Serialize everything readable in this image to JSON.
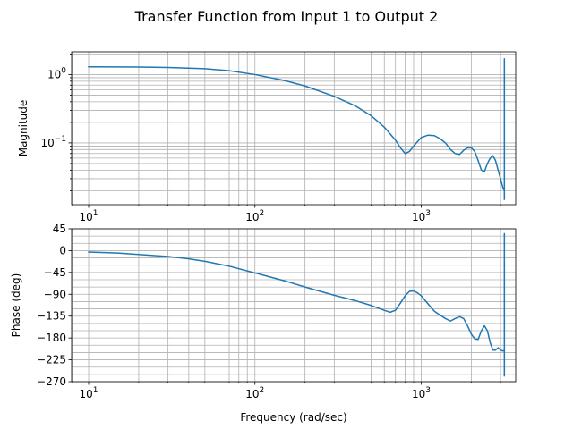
{
  "title": "Transfer Function from Input 1 to Output 2",
  "chart_data": [
    {
      "type": "line",
      "panel": "magnitude",
      "xscale": "log",
      "yscale": "log",
      "xlim": [
        7.9,
        3700
      ],
      "ylim": [
        0.0125,
        2.15
      ],
      "grid": true,
      "xlabel": "",
      "ylabel": "Magnitude",
      "xticks": [
        10,
        100,
        1000
      ],
      "yticks": [
        1,
        0.1
      ],
      "color": "#1f77b4",
      "series": [
        {
          "x": [
            10,
            20,
            30,
            50,
            70,
            100,
            150,
            200,
            300,
            400,
            500,
            600,
            700,
            750,
            800,
            850,
            900,
            1000,
            1100,
            1200,
            1300,
            1400,
            1500,
            1600,
            1700,
            1800,
            1900,
            2000,
            2100,
            2200,
            2300,
            2400,
            2500,
            2600,
            2700,
            2800,
            2900,
            3000,
            3100,
            3162,
            3162,
            3162
          ],
          "y": [
            1.3,
            1.29,
            1.27,
            1.22,
            1.14,
            1.0,
            0.82,
            0.68,
            0.48,
            0.35,
            0.25,
            0.17,
            0.11,
            0.085,
            0.07,
            0.075,
            0.09,
            0.12,
            0.13,
            0.128,
            0.115,
            0.1,
            0.08,
            0.07,
            0.068,
            0.078,
            0.085,
            0.085,
            0.075,
            0.055,
            0.04,
            0.038,
            0.05,
            0.06,
            0.065,
            0.055,
            0.04,
            0.03,
            0.022,
            0.02,
            1.7,
            0.015
          ]
        }
      ]
    },
    {
      "type": "line",
      "panel": "phase",
      "xscale": "log",
      "yscale": "linear",
      "xlim": [
        7.9,
        3700
      ],
      "ylim": [
        -270,
        45
      ],
      "grid": true,
      "xlabel": "Frequency (rad/sec)",
      "ylabel": "Phase (deg)",
      "xticks": [
        10,
        100,
        1000
      ],
      "yticks": [
        45,
        0,
        -45,
        -90,
        -135,
        -180,
        -225,
        -270
      ],
      "color": "#1f77b4",
      "series": [
        {
          "x": [
            10,
            15,
            20,
            30,
            40,
            50,
            70,
            100,
            150,
            200,
            300,
            400,
            500,
            600,
            650,
            700,
            750,
            800,
            850,
            900,
            950,
            1000,
            1100,
            1200,
            1300,
            1400,
            1500,
            1600,
            1700,
            1800,
            1900,
            2000,
            2100,
            2200,
            2300,
            2400,
            2500,
            2600,
            2700,
            2800,
            2900,
            3000,
            3100,
            3162,
            3162,
            3162
          ],
          "y": [
            -3,
            -5,
            -8,
            -12,
            -17,
            -22,
            -32,
            -46,
            -62,
            -75,
            -92,
            -103,
            -113,
            -123,
            -127,
            -123,
            -108,
            -93,
            -84,
            -83,
            -87,
            -93,
            -110,
            -125,
            -133,
            -140,
            -145,
            -140,
            -136,
            -140,
            -155,
            -172,
            -182,
            -183,
            -165,
            -155,
            -165,
            -190,
            -205,
            -205,
            -200,
            -205,
            -207,
            -205,
            35,
            -258
          ]
        }
      ]
    }
  ]
}
